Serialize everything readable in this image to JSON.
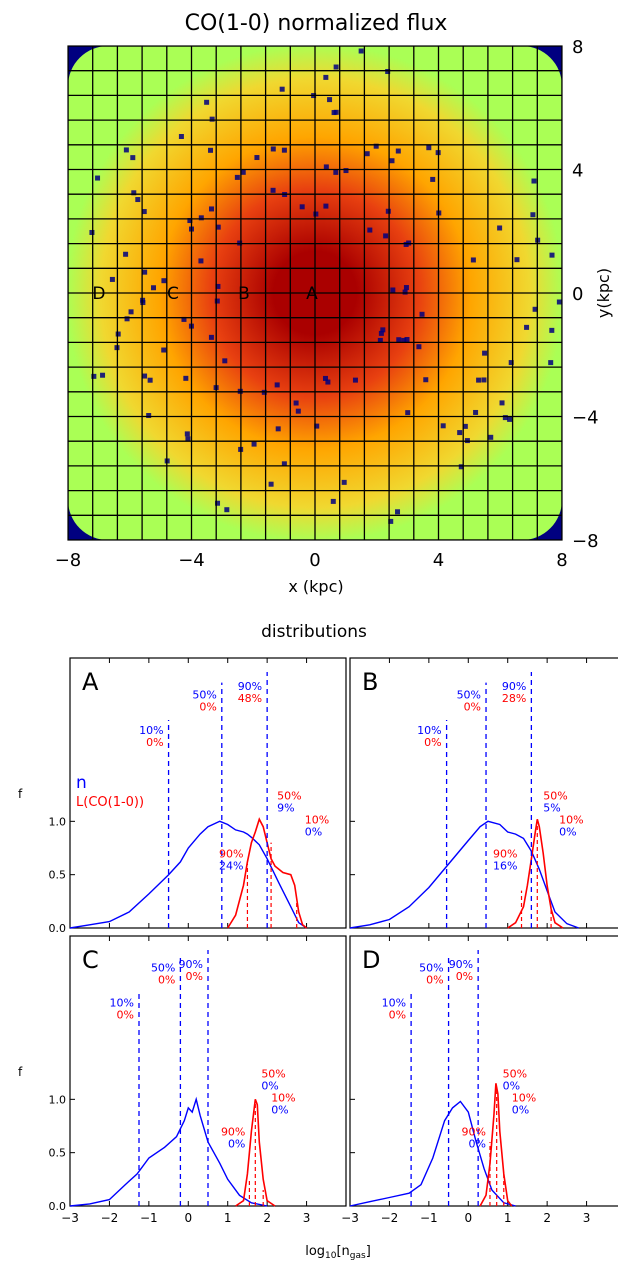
{
  "figure": {
    "map_title": "CO(1-0) normalized flux",
    "dist_title": "distributions"
  },
  "chart_data": [
    {
      "type": "heatmap",
      "title": "CO(1-0) normalized flux",
      "xlabel": "x (kpc)",
      "ylabel": "y(kpc)",
      "xlim": [
        -8,
        8
      ],
      "ylim": [
        -8,
        8
      ],
      "x_ticks": [
        "−8",
        "−4",
        "0",
        "4",
        "8"
      ],
      "y_ticks": [
        "8",
        "4",
        "0",
        "−4",
        "−8"
      ],
      "grid": true,
      "grid_cells": 20,
      "colors": {
        "background": "#000080",
        "low": "#aaff55",
        "mid": "#ffa500",
        "high": "#aa0000"
      },
      "markers": [
        {
          "label": "D",
          "x": -7.0,
          "y": 0
        },
        {
          "label": "C",
          "x": -4.6,
          "y": 0
        },
        {
          "label": "B",
          "x": -2.3,
          "y": 0
        },
        {
          "label": "A",
          "x": -0.1,
          "y": 0
        }
      ]
    },
    {
      "type": "line",
      "xlabel": "log10[ngas]",
      "xlabel_main": "log",
      "xlabel_sub1": "10",
      "xlabel_mid": "[n",
      "xlabel_sub2": "gas",
      "xlabel_end": "]",
      "ylabel": "f",
      "xlim": [
        -3,
        4
      ],
      "ylim": [
        0,
        2.4
      ],
      "x_ticks": [
        "−3",
        "−2",
        "−1",
        "0",
        "1",
        "2",
        "3"
      ],
      "y_ticks": [
        "0.0",
        "0.5",
        "1.0"
      ],
      "legend": [
        "n",
        "L(CO(1-0))"
      ],
      "colors": {
        "n": "#0000ff",
        "co": "#ff0000"
      },
      "panels": [
        {
          "name": "A",
          "n_x": [
            -3,
            -2.5,
            -2,
            -1.5,
            -1,
            -0.5,
            -0.2,
            0,
            0.3,
            0.5,
            0.8,
            1.0,
            1.2,
            1.4,
            1.5,
            1.6,
            1.8,
            2.0,
            2.3,
            2.6,
            2.8,
            3.0
          ],
          "n_y": [
            0.0,
            0.03,
            0.06,
            0.15,
            0.32,
            0.5,
            0.62,
            0.75,
            0.88,
            0.95,
            1.0,
            0.97,
            0.92,
            0.9,
            0.88,
            0.85,
            0.78,
            0.65,
            0.42,
            0.2,
            0.05,
            0.0
          ],
          "co_x": [
            1.0,
            1.2,
            1.4,
            1.5,
            1.6,
            1.7,
            1.8,
            1.9,
            2.0,
            2.1,
            2.2,
            2.4,
            2.6,
            2.7,
            2.8,
            2.9,
            3.0
          ],
          "co_y": [
            0.0,
            0.12,
            0.4,
            0.62,
            0.8,
            0.9,
            1.02,
            0.95,
            0.8,
            0.65,
            0.58,
            0.52,
            0.5,
            0.4,
            0.15,
            0.03,
            0.0
          ],
          "n_vlines": [
            {
              "x": -0.5,
              "height": 1.95,
              "pct_n": "10%",
              "pct_co": "0%"
            },
            {
              "x": 0.85,
              "height": 2.3,
              "pct_n": "50%",
              "pct_co": "0%"
            },
            {
              "x": 2.0,
              "height": 2.4,
              "pct_n": "90%",
              "pct_co": "48%"
            }
          ],
          "co_vlines": [
            {
              "x": 1.5,
              "height": 0.6,
              "pct_co": "90%",
              "pct_n": "24%"
            },
            {
              "x": 2.1,
              "height": 0.8,
              "pct_co": "50%",
              "pct_n": "9%"
            },
            {
              "x": 2.75,
              "height": 0.25,
              "pct_co": "10%",
              "pct_n": "0%"
            }
          ]
        },
        {
          "name": "B",
          "n_x": [
            -3,
            -2.5,
            -2,
            -1.5,
            -1,
            -0.5,
            0,
            0.3,
            0.5,
            0.8,
            1.0,
            1.2,
            1.4,
            1.6,
            1.8,
            2.0,
            2.2,
            2.5,
            2.8
          ],
          "n_y": [
            0.0,
            0.03,
            0.08,
            0.2,
            0.38,
            0.6,
            0.82,
            0.95,
            1.0,
            0.97,
            0.9,
            0.88,
            0.84,
            0.72,
            0.55,
            0.35,
            0.15,
            0.04,
            0.0
          ],
          "co_x": [
            1.0,
            1.2,
            1.4,
            1.5,
            1.6,
            1.7,
            1.75,
            1.8,
            1.9,
            2.0,
            2.1,
            2.2,
            2.4
          ],
          "co_y": [
            0.0,
            0.05,
            0.2,
            0.4,
            0.65,
            0.9,
            1.02,
            0.95,
            0.7,
            0.4,
            0.18,
            0.05,
            0.0
          ],
          "n_vlines": [
            {
              "x": -0.55,
              "height": 1.95,
              "pct_n": "10%",
              "pct_co": "0%"
            },
            {
              "x": 0.45,
              "height": 2.3,
              "pct_n": "50%",
              "pct_co": "0%"
            },
            {
              "x": 1.6,
              "height": 2.4,
              "pct_n": "90%",
              "pct_co": "28%"
            }
          ],
          "co_vlines": [
            {
              "x": 1.35,
              "height": 0.35,
              "pct_co": "90%",
              "pct_n": "16%"
            },
            {
              "x": 1.75,
              "height": 1.0,
              "pct_co": "50%",
              "pct_n": "5%"
            },
            {
              "x": 2.1,
              "height": 0.2,
              "pct_co": "10%",
              "pct_n": "0%"
            }
          ]
        },
        {
          "name": "C",
          "n_x": [
            -3,
            -2.5,
            -2.0,
            -1.6,
            -1.3,
            -1.2,
            -1.0,
            -0.6,
            -0.3,
            -0.1,
            0.0,
            0.1,
            0.2,
            0.3,
            0.5,
            0.8,
            1.0,
            1.3,
            1.6,
            2.0
          ],
          "n_y": [
            0.0,
            0.02,
            0.06,
            0.2,
            0.3,
            0.35,
            0.45,
            0.55,
            0.65,
            0.8,
            0.92,
            0.88,
            1.0,
            0.85,
            0.6,
            0.4,
            0.25,
            0.1,
            0.03,
            0.0
          ],
          "co_x": [
            1.2,
            1.4,
            1.5,
            1.6,
            1.7,
            1.75,
            1.8,
            1.9,
            2.0,
            2.2
          ],
          "co_y": [
            0.0,
            0.05,
            0.3,
            0.7,
            1.0,
            0.95,
            0.6,
            0.25,
            0.05,
            0.0
          ],
          "n_vlines": [
            {
              "x": -1.25,
              "height": 2.0,
              "pct_n": "10%",
              "pct_co": "0%"
            },
            {
              "x": -0.2,
              "height": 2.35,
              "pct_n": "50%",
              "pct_co": "0%"
            },
            {
              "x": 0.5,
              "height": 2.4,
              "pct_n": "90%",
              "pct_co": "0%"
            }
          ],
          "co_vlines": [
            {
              "x": 1.55,
              "height": 0.25,
              "pct_co": "90%",
              "pct_n": "0%"
            },
            {
              "x": 1.7,
              "height": 1.0,
              "pct_co": "50%",
              "pct_n": "0%"
            },
            {
              "x": 1.9,
              "height": 0.15,
              "pct_co": "10%",
              "pct_n": "0%"
            }
          ]
        },
        {
          "name": "D",
          "n_x": [
            -3,
            -2.5,
            -2.0,
            -1.5,
            -1.2,
            -0.9,
            -0.6,
            -0.4,
            -0.2,
            0.0,
            0.2,
            0.4,
            0.6,
            0.9,
            1.2
          ],
          "n_y": [
            0.0,
            0.04,
            0.08,
            0.12,
            0.2,
            0.45,
            0.8,
            0.92,
            0.98,
            0.88,
            0.6,
            0.35,
            0.15,
            0.03,
            0.0
          ],
          "co_x": [
            0.3,
            0.45,
            0.55,
            0.65,
            0.7,
            0.75,
            0.8,
            0.9,
            1.0,
            1.1
          ],
          "co_y": [
            0.0,
            0.1,
            0.4,
            0.85,
            1.15,
            1.05,
            0.7,
            0.3,
            0.05,
            0.0
          ],
          "n_vlines": [
            {
              "x": -1.45,
              "height": 2.0,
              "pct_n": "10%",
              "pct_co": "0%"
            },
            {
              "x": -0.5,
              "height": 2.35,
              "pct_n": "50%",
              "pct_co": "0%"
            },
            {
              "x": 0.25,
              "height": 2.4,
              "pct_n": "90%",
              "pct_co": "0%"
            }
          ],
          "co_vlines": [
            {
              "x": 0.55,
              "height": 0.6,
              "pct_co": "90%",
              "pct_n": "0%"
            },
            {
              "x": 0.72,
              "height": 1.1,
              "pct_co": "50%",
              "pct_n": "0%"
            },
            {
              "x": 0.9,
              "height": 0.3,
              "pct_co": "10%",
              "pct_n": "0%"
            }
          ]
        }
      ]
    }
  ]
}
